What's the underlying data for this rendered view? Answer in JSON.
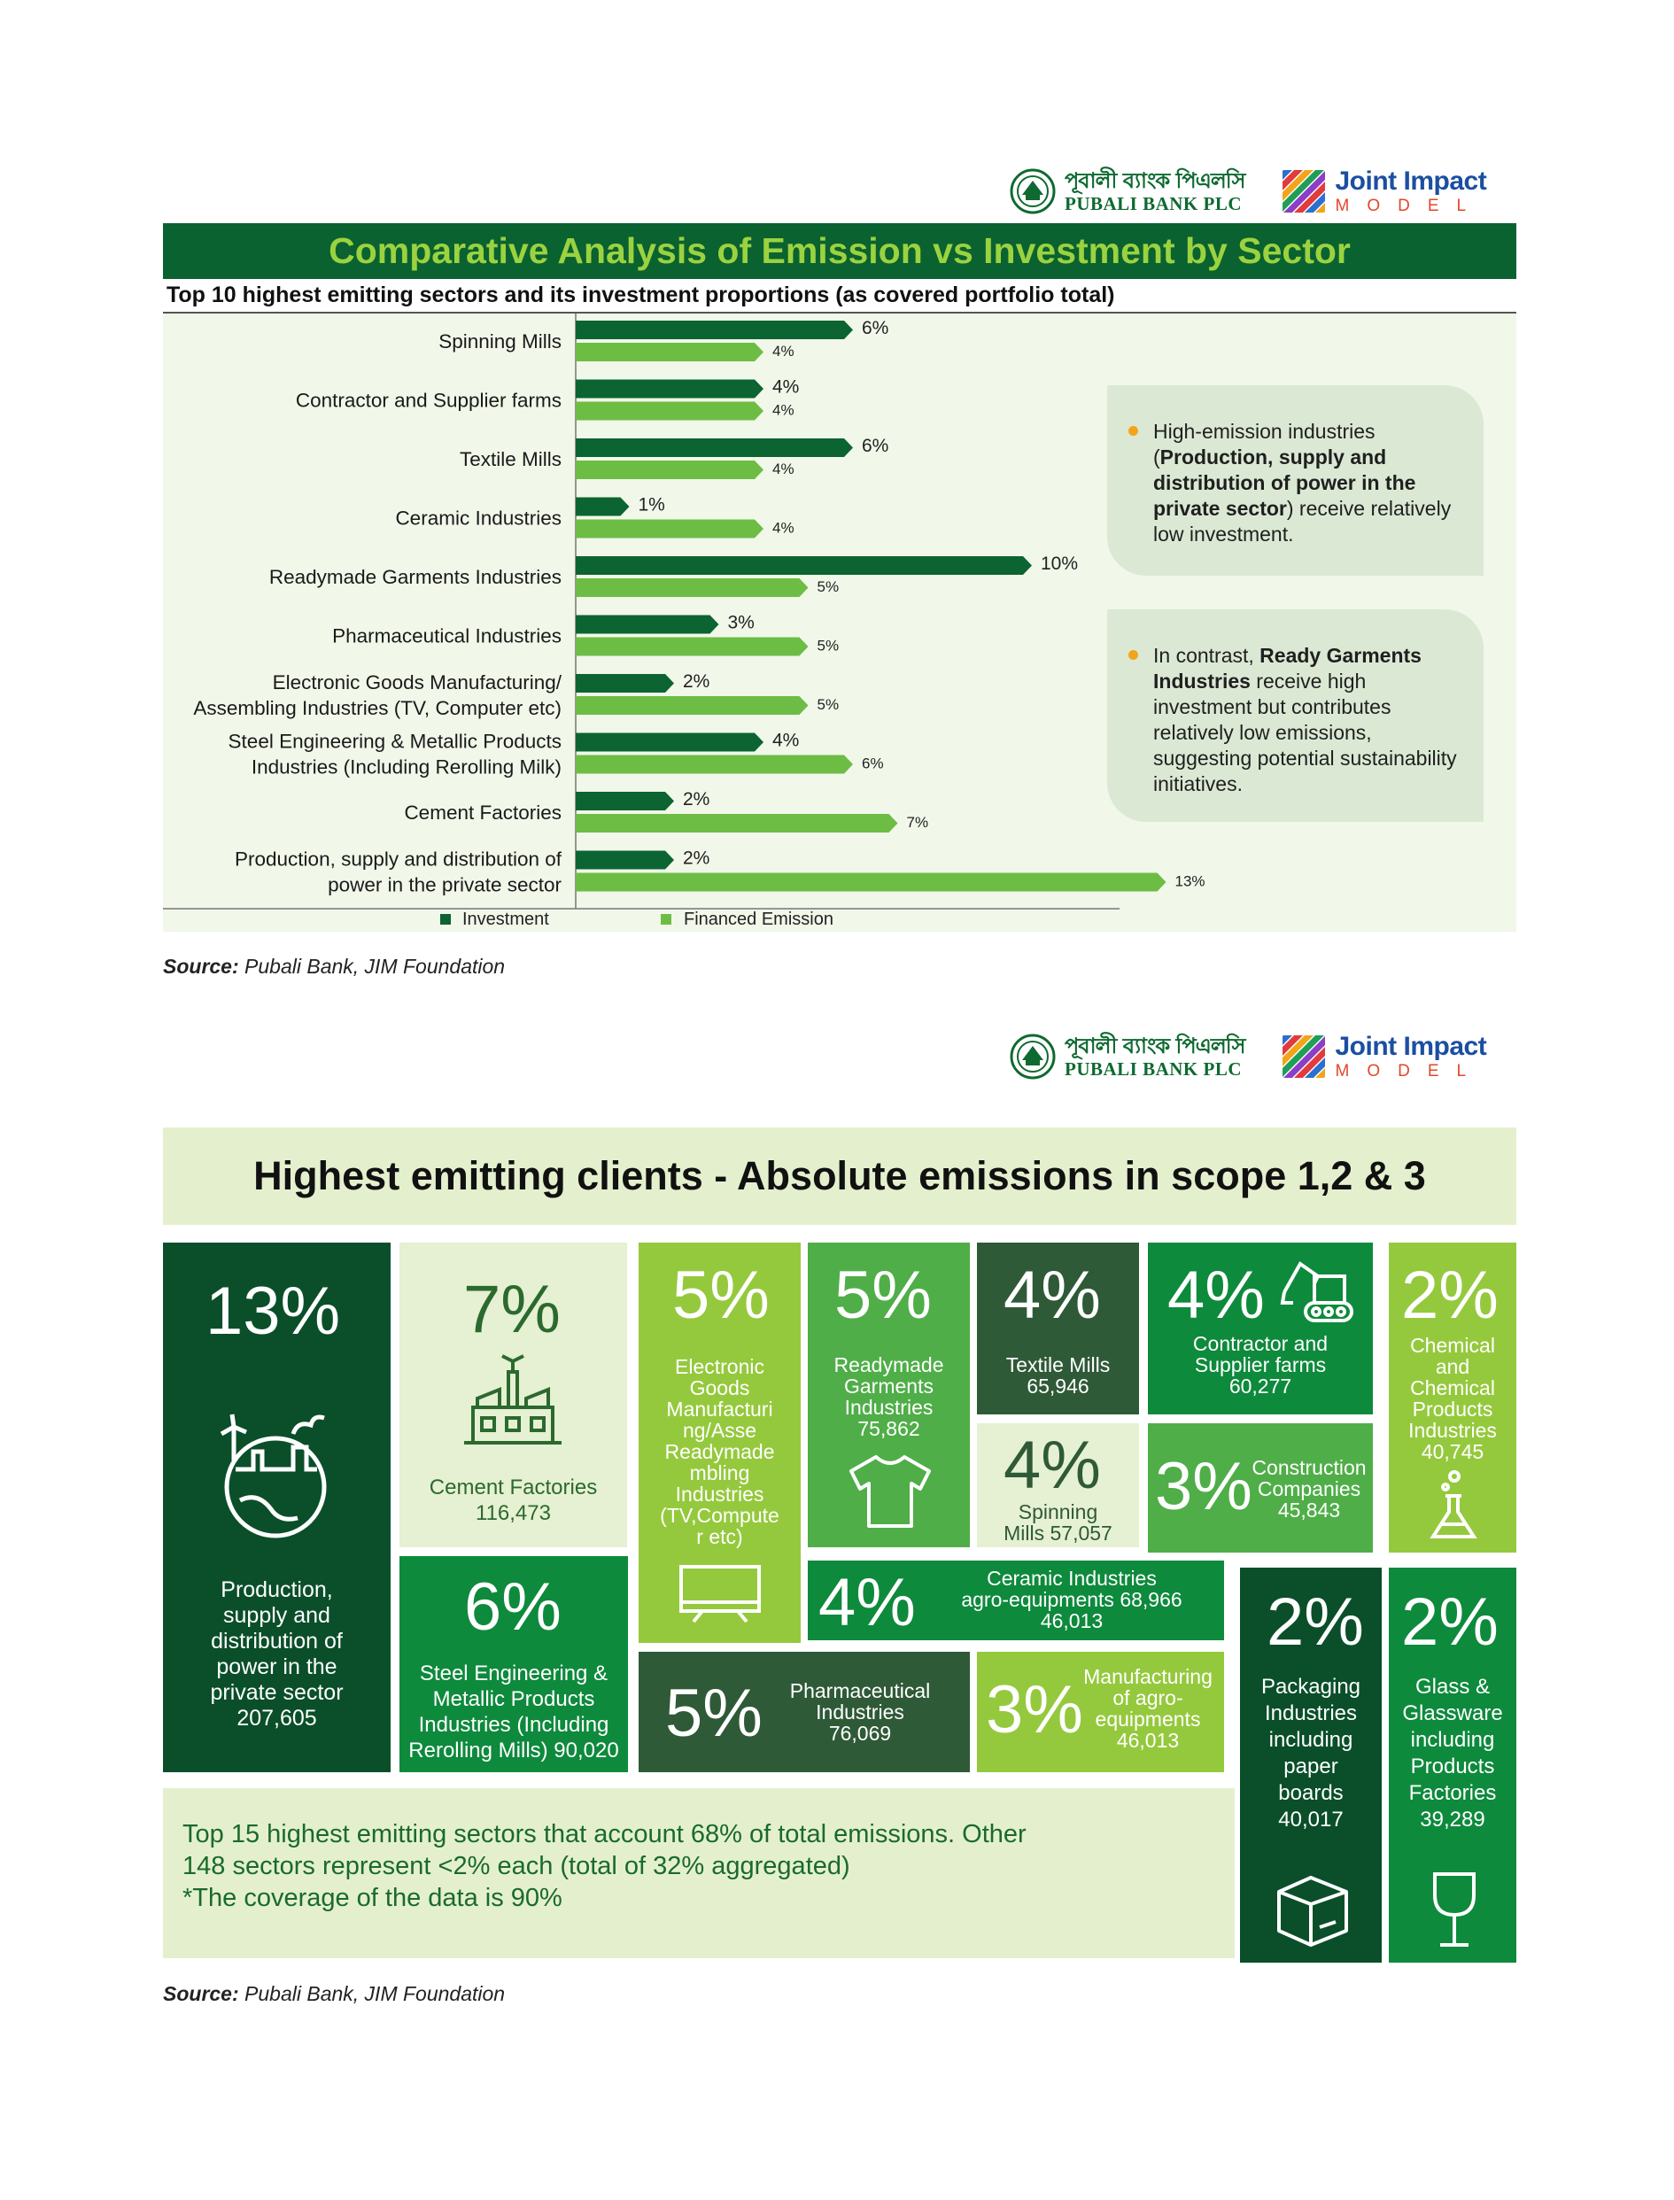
{
  "logos": {
    "pubali_bengali": "পূবালী ব্যাংক পিএলসি",
    "pubali_english": "PUBALI BANK PLC",
    "jim_line1": "Joint Impact",
    "jim_line2": "MODEL"
  },
  "colors": {
    "dark_green": "#0a6230",
    "investment": "#0b6431",
    "emission": "#6dbd45",
    "title_text": "#9bd23f",
    "bullet": "#f2a51a"
  },
  "section1": {
    "title": "Comparative Analysis of Emission vs Investment by Sector",
    "subtitle": "Top 10 highest emitting sectors and its investment proportions (as covered portfolio total)",
    "notes": [
      {
        "pre": "High-emission industries (",
        "bold": "Production, supply and distribution of power in the private sector",
        "post": ") receive relatively low investment."
      },
      {
        "pre": "In contrast, ",
        "bold": "Ready Garments Industries",
        "post": " receive high investment but contributes relatively low emissions, suggesting potential sustainability initiatives."
      }
    ],
    "source_label": "Source:",
    "source_text": " Pubali Bank, JIM Foundation"
  },
  "chart_data": {
    "type": "bar",
    "orientation": "horizontal",
    "title": "Comparative Analysis of Emission vs Investment by Sector",
    "subtitle": "Top 10 highest emitting sectors and its investment proportions (as covered portfolio total)",
    "categories": [
      [
        "Spinning Mills"
      ],
      [
        "Contractor and Supplier farms"
      ],
      [
        "Textile Mills"
      ],
      [
        "Ceramic Industries"
      ],
      [
        "Readymade Garments Industries"
      ],
      [
        "Pharmaceutical Industries"
      ],
      [
        "Electronic Goods Manufacturing/",
        "Assembling Industries (TV, Computer etc)"
      ],
      [
        "Steel Engineering & Metallic Products",
        "Industries (Including Rerolling Milk)"
      ],
      [
        "Cement Factories"
      ],
      [
        "Production, supply and distribution of",
        "power in the private sector"
      ]
    ],
    "series": [
      {
        "name": "Investment",
        "values": [
          6,
          4,
          6,
          1,
          10,
          3,
          2,
          4,
          2,
          2
        ],
        "labels": [
          "6%",
          "4%",
          "6%",
          "1%",
          "10%",
          "3%",
          "2%",
          "4%",
          "2%",
          "2%"
        ]
      },
      {
        "name": "Financed Emission",
        "values": [
          4,
          4,
          4,
          4,
          5,
          5,
          5,
          6,
          7,
          13
        ],
        "labels": [
          "4%",
          "4%",
          "4%",
          "4%",
          "5%",
          "5%",
          "5%",
          "6%",
          "7%",
          "13%"
        ]
      }
    ],
    "legend": [
      "Investment",
      "Financed Emission"
    ],
    "legend_position": "bottom",
    "unit": "%"
  },
  "section2": {
    "title": "Highest emitting clients - Absolute emissions in scope 1,2 & 3",
    "tiles": [
      {
        "pct": "13%",
        "label": [
          "Production,",
          "supply and",
          "distribution of",
          "power in the",
          "private sector",
          "207,605"
        ]
      },
      {
        "pct": "7%",
        "label": [
          "Cement Factories",
          "116,473"
        ]
      },
      {
        "pct": "6%",
        "label": [
          "Steel Engineering &",
          "Metallic Products",
          "Industries (Including",
          "Rerolling Mills) 90,020"
        ]
      },
      {
        "pct": "5%",
        "label": [
          "Electronic",
          "Goods",
          "Manufacturi",
          "ng/Asse",
          "Readymade",
          "mbling",
          "Industries",
          "(TV,Compute",
          "r etc)"
        ]
      },
      {
        "pct": "5%",
        "label": [
          "Readymade",
          "Garments",
          "Industries",
          "75,862"
        ]
      },
      {
        "pct": "4%",
        "label": [
          "Textile Mills",
          "65,946"
        ]
      },
      {
        "pct": "4%",
        "label": [
          "Spinning",
          "Mills 57,057"
        ]
      },
      {
        "pct": "4%",
        "label": [
          "Contractor and",
          "Supplier farms",
          "60,277"
        ]
      },
      {
        "pct": "3%",
        "label": [
          "Construction",
          "Companies",
          "45,843"
        ]
      },
      {
        "pct": "2%",
        "label": [
          "Chemical",
          "and",
          "Chemical",
          "Products",
          "Industries",
          "40,745"
        ]
      },
      {
        "pct": "4%",
        "label": [
          "Ceramic Industries",
          "agro-equipments 68,966",
          "46,013"
        ]
      },
      {
        "pct": "5%",
        "label": [
          "Pharmaceutical",
          "Industries",
          "76,069"
        ]
      },
      {
        "pct": "3%",
        "label": [
          "Manufacturing",
          "of agro-",
          "equipments",
          "46,013"
        ]
      },
      {
        "pct": "2%",
        "label": [
          "Packaging",
          "Industries",
          "including",
          "paper",
          "boards",
          "40,017"
        ]
      },
      {
        "pct": "2%",
        "label": [
          "Glass &",
          "Glassware",
          "including",
          "Products",
          "Factories",
          "39,289"
        ]
      }
    ],
    "summary": [
      "Top 15 highest emitting sectors that account 68% of total emissions. Other",
      "148 sectors represent <2% each (total of 32% aggregated)",
      "*The coverage of the data is 90%"
    ],
    "source_label": "Source:",
    "source_text": " Pubali Bank, JIM Foundation"
  }
}
